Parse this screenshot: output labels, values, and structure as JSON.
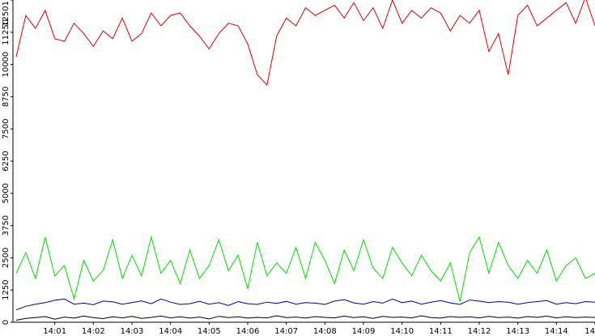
{
  "chart_data": {
    "type": "line",
    "categories": [
      null,
      null,
      null,
      null,
      "14:01",
      null,
      null,
      null,
      "14:02",
      null,
      null,
      null,
      "14:03",
      null,
      null,
      null,
      "14:04",
      null,
      null,
      null,
      "14:05",
      null,
      null,
      null,
      "14:06",
      null,
      null,
      null,
      "14:07",
      null,
      null,
      null,
      "14:08",
      null,
      null,
      null,
      "14:09",
      null,
      null,
      null,
      "14:10",
      null,
      null,
      null,
      "14:11",
      null,
      null,
      null,
      "14:12",
      null,
      null,
      null,
      "14:13",
      null,
      null,
      null,
      "14:14",
      null,
      null,
      null,
      "14"
    ],
    "series": [
      {
        "color": "#e00000",
        "values": [
          10300,
          11900,
          11400,
          12100,
          11000,
          10900,
          11600,
          11200,
          10700,
          11300,
          11000,
          11800,
          10900,
          11200,
          12000,
          11500,
          11900,
          12000,
          11500,
          11100,
          10600,
          11200,
          11600,
          11500,
          10800,
          9600,
          9200,
          11100,
          11800,
          11500,
          12200,
          11900,
          12100,
          12300,
          11800,
          12400,
          11700,
          12200,
          11400,
          12500,
          11600,
          12100,
          11800,
          12200,
          12000,
          11300,
          11900,
          11600,
          12100,
          10500,
          11200,
          9600,
          11900,
          12300,
          11500,
          11800,
          12100,
          12400,
          11600,
          12600,
          11500
        ]
      },
      {
        "color": "#00e000",
        "values": [
          1900,
          2700,
          1700,
          3300,
          1800,
          2200,
          900,
          2400,
          1600,
          2000,
          3200,
          1700,
          2600,
          1800,
          3300,
          1900,
          2400,
          1500,
          2800,
          1700,
          2200,
          3200,
          2000,
          2600,
          1300,
          3100,
          1800,
          2300,
          1900,
          2900,
          1700,
          3100,
          2400,
          1500,
          2800,
          2000,
          3200,
          2100,
          1700,
          2900,
          2300,
          1800,
          2600,
          2000,
          1600,
          2300,
          800,
          2700,
          3300,
          1900,
          3100,
          2200,
          1700,
          2400,
          1900,
          2800,
          1600,
          2200,
          2500,
          1700,
          1900
        ]
      },
      {
        "color": "#000099",
        "values": [
          480,
          620,
          700,
          760,
          850,
          900,
          700,
          740,
          680,
          820,
          790,
          700,
          760,
          830,
          720,
          900,
          780,
          690,
          720,
          810,
          700,
          760,
          650,
          800,
          720,
          690,
          780,
          730,
          810,
          700,
          760,
          740,
          690,
          820,
          880,
          750,
          700,
          800,
          740,
          900,
          760,
          820,
          700,
          780,
          840,
          750,
          690,
          860,
          820,
          760,
          800,
          780,
          700,
          760,
          800,
          840,
          700,
          760,
          720,
          800,
          780
        ]
      },
      {
        "color": "#000000",
        "values": [
          80,
          150,
          180,
          220,
          120,
          200,
          160,
          240,
          180,
          140,
          210,
          170,
          230,
          150,
          190,
          240,
          170,
          210,
          160,
          200,
          130,
          230,
          180,
          210,
          160,
          190,
          170,
          250,
          180,
          200,
          160,
          220,
          190,
          170,
          240,
          180,
          210,
          150,
          230,
          190,
          200,
          170,
          250,
          180,
          160,
          220,
          190,
          210,
          170,
          230,
          180,
          200,
          160,
          220,
          190,
          240,
          170,
          210,
          180,
          200,
          190
        ]
      }
    ],
    "ylim": [
      0,
      12501
    ],
    "yticks": [
      0,
      1250,
      2500,
      3750,
      5000,
      6250,
      7500,
      8750,
      10000,
      11250,
      12501
    ]
  }
}
